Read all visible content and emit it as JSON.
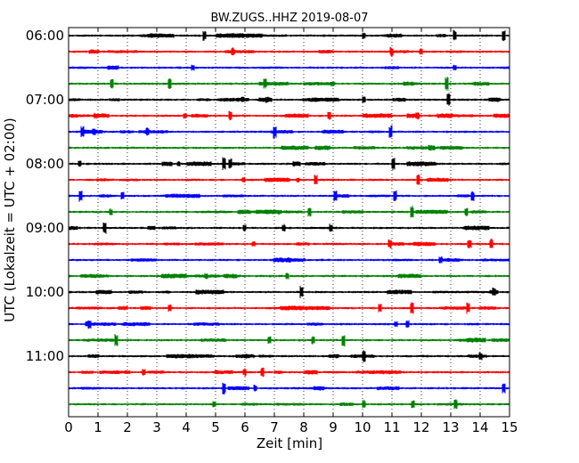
{
  "chart_data": {
    "type": "line",
    "title": "BW.ZUGS..HHZ 2019-08-07",
    "xlabel": "Zeit  [min]",
    "ylabel": "UTC (Lokalzeit = UTC + 02:00)",
    "xlim": [
      0,
      15
    ],
    "x_ticks": [
      "0",
      "1",
      "2",
      "3",
      "4",
      "5",
      "6",
      "7",
      "8",
      "9",
      "10",
      "11",
      "12",
      "13",
      "14",
      "15"
    ],
    "y_ticks": [
      "06:00",
      "07:00",
      "08:00",
      "09:00",
      "10:00",
      "11:00"
    ],
    "grid": "vertical dotted at each minute",
    "minutes_per_line": 15,
    "trace_colors": [
      "#000000",
      "#ff0000",
      "#0000ff",
      "#008000"
    ],
    "traces": [
      {
        "start": "06:00",
        "color": "#000000"
      },
      {
        "start": "06:15",
        "color": "#ff0000"
      },
      {
        "start": "06:30",
        "color": "#0000ff"
      },
      {
        "start": "06:45",
        "color": "#008000"
      },
      {
        "start": "07:00",
        "color": "#000000"
      },
      {
        "start": "07:15",
        "color": "#ff0000"
      },
      {
        "start": "07:30",
        "color": "#0000ff"
      },
      {
        "start": "07:45",
        "color": "#008000"
      },
      {
        "start": "08:00",
        "color": "#000000"
      },
      {
        "start": "08:15",
        "color": "#ff0000"
      },
      {
        "start": "08:30",
        "color": "#0000ff"
      },
      {
        "start": "08:45",
        "color": "#008000"
      },
      {
        "start": "09:00",
        "color": "#000000"
      },
      {
        "start": "09:15",
        "color": "#ff0000"
      },
      {
        "start": "09:30",
        "color": "#0000ff"
      },
      {
        "start": "09:45",
        "color": "#008000"
      },
      {
        "start": "10:00",
        "color": "#000000"
      },
      {
        "start": "10:15",
        "color": "#ff0000"
      },
      {
        "start": "10:30",
        "color": "#0000ff"
      },
      {
        "start": "10:45",
        "color": "#008000"
      },
      {
        "start": "11:00",
        "color": "#000000"
      },
      {
        "start": "11:15",
        "color": "#ff0000"
      },
      {
        "start": "11:30",
        "color": "#0000ff"
      },
      {
        "start": "11:45",
        "color": "#008000"
      }
    ]
  }
}
